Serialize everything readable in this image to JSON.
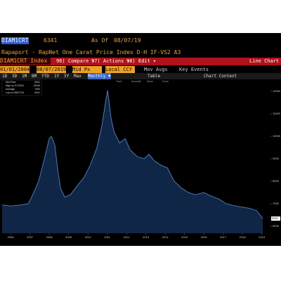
{
  "header": {
    "ticker": "DIAM1CRT",
    "last_price": "6341",
    "as_of_label": "As Of",
    "as_of_date": "08/07/19",
    "description": "Rapaport - RapNet One Carat Price Index D-H IF-VS2 A3"
  },
  "toolbar": {
    "security": "DIAM1CRT Index",
    "compare": "96) Compare ▾",
    "actions": "97) Actions ▾",
    "edit": "98) Edit ▾",
    "view": "Line Chart"
  },
  "settings": {
    "start_date": "01/01/2004",
    "end_date": "08/07/2019",
    "field": "Mid Px",
    "currency": "Local CCY",
    "mov_avgs": "Mov Avgs",
    "key_events": "Key Events"
  },
  "periods": {
    "buttons": [
      "1D",
      "3D",
      "1M",
      "6M",
      "YTD",
      "1Y",
      "5Y",
      "Max"
    ],
    "frequency": "Monthly ▼",
    "table": "Table",
    "chart_content": "Chart Content"
  },
  "chart_tools": [
    "Track",
    "Annotate",
    "News",
    "Zoom"
  ],
  "chart_data": {
    "type": "area",
    "color": "#5b8fd6",
    "fill": "#0f2647",
    "grid": false,
    "x": [
      2005.56,
      2006,
      2006.55,
      2006.91,
      2007.09,
      2007.45,
      2007.75,
      2008,
      2008.11,
      2008.29,
      2008.44,
      2008.58,
      2008.8,
      2009.09,
      2009.45,
      2009.82,
      2010.11,
      2010.47,
      2010.73,
      2010.91,
      2011.02,
      2011.2,
      2011.35,
      2011.64,
      2011.93,
      2012.18,
      2012.55,
      2012.91,
      2013.16,
      2013.45,
      2013.82,
      2014.11,
      2014.47,
      2014.84,
      2015.2,
      2015.56,
      2016,
      2016.36,
      2016.8,
      2017.16,
      2017.64,
      2018,
      2018.36,
      2018.73,
      2019.05
    ],
    "values": [
      6950,
      6900,
      6950,
      7000,
      7300,
      8000,
      9000,
      9900,
      10000,
      9600,
      8500,
      7700,
      7300,
      7400,
      7800,
      8200,
      8700,
      9500,
      10500,
      11500,
      12043,
      10800,
      10200,
      9700,
      9900,
      9400,
      9100,
      9000,
      9200,
      8900,
      8700,
      8600,
      8000,
      7700,
      7500,
      7400,
      7500,
      7350,
      7200,
      7000,
      6900,
      6850,
      6800,
      6700,
      6341
    ],
    "xlim": [
      2005.45,
      2019.45
    ],
    "xticks": [
      2006,
      2007,
      2008,
      2009,
      2010,
      2011,
      2012,
      2013,
      2014,
      2015,
      2016,
      2017,
      2018,
      2019
    ],
    "ylim": [
      5690,
      12530
    ],
    "yticks": [
      6000,
      7000,
      8000,
      9000,
      10000,
      11000,
      12000
    ],
    "last_value_label": "6341",
    "legend": [
      {
        "name": "Mid Price",
        "value": "6341"
      },
      {
        "name": "High on 07/29/11",
        "value": "12043"
      },
      {
        "name": "Average",
        "value": "7992"
      },
      {
        "name": "Low on 08/07/19",
        "value": "6341"
      }
    ]
  }
}
